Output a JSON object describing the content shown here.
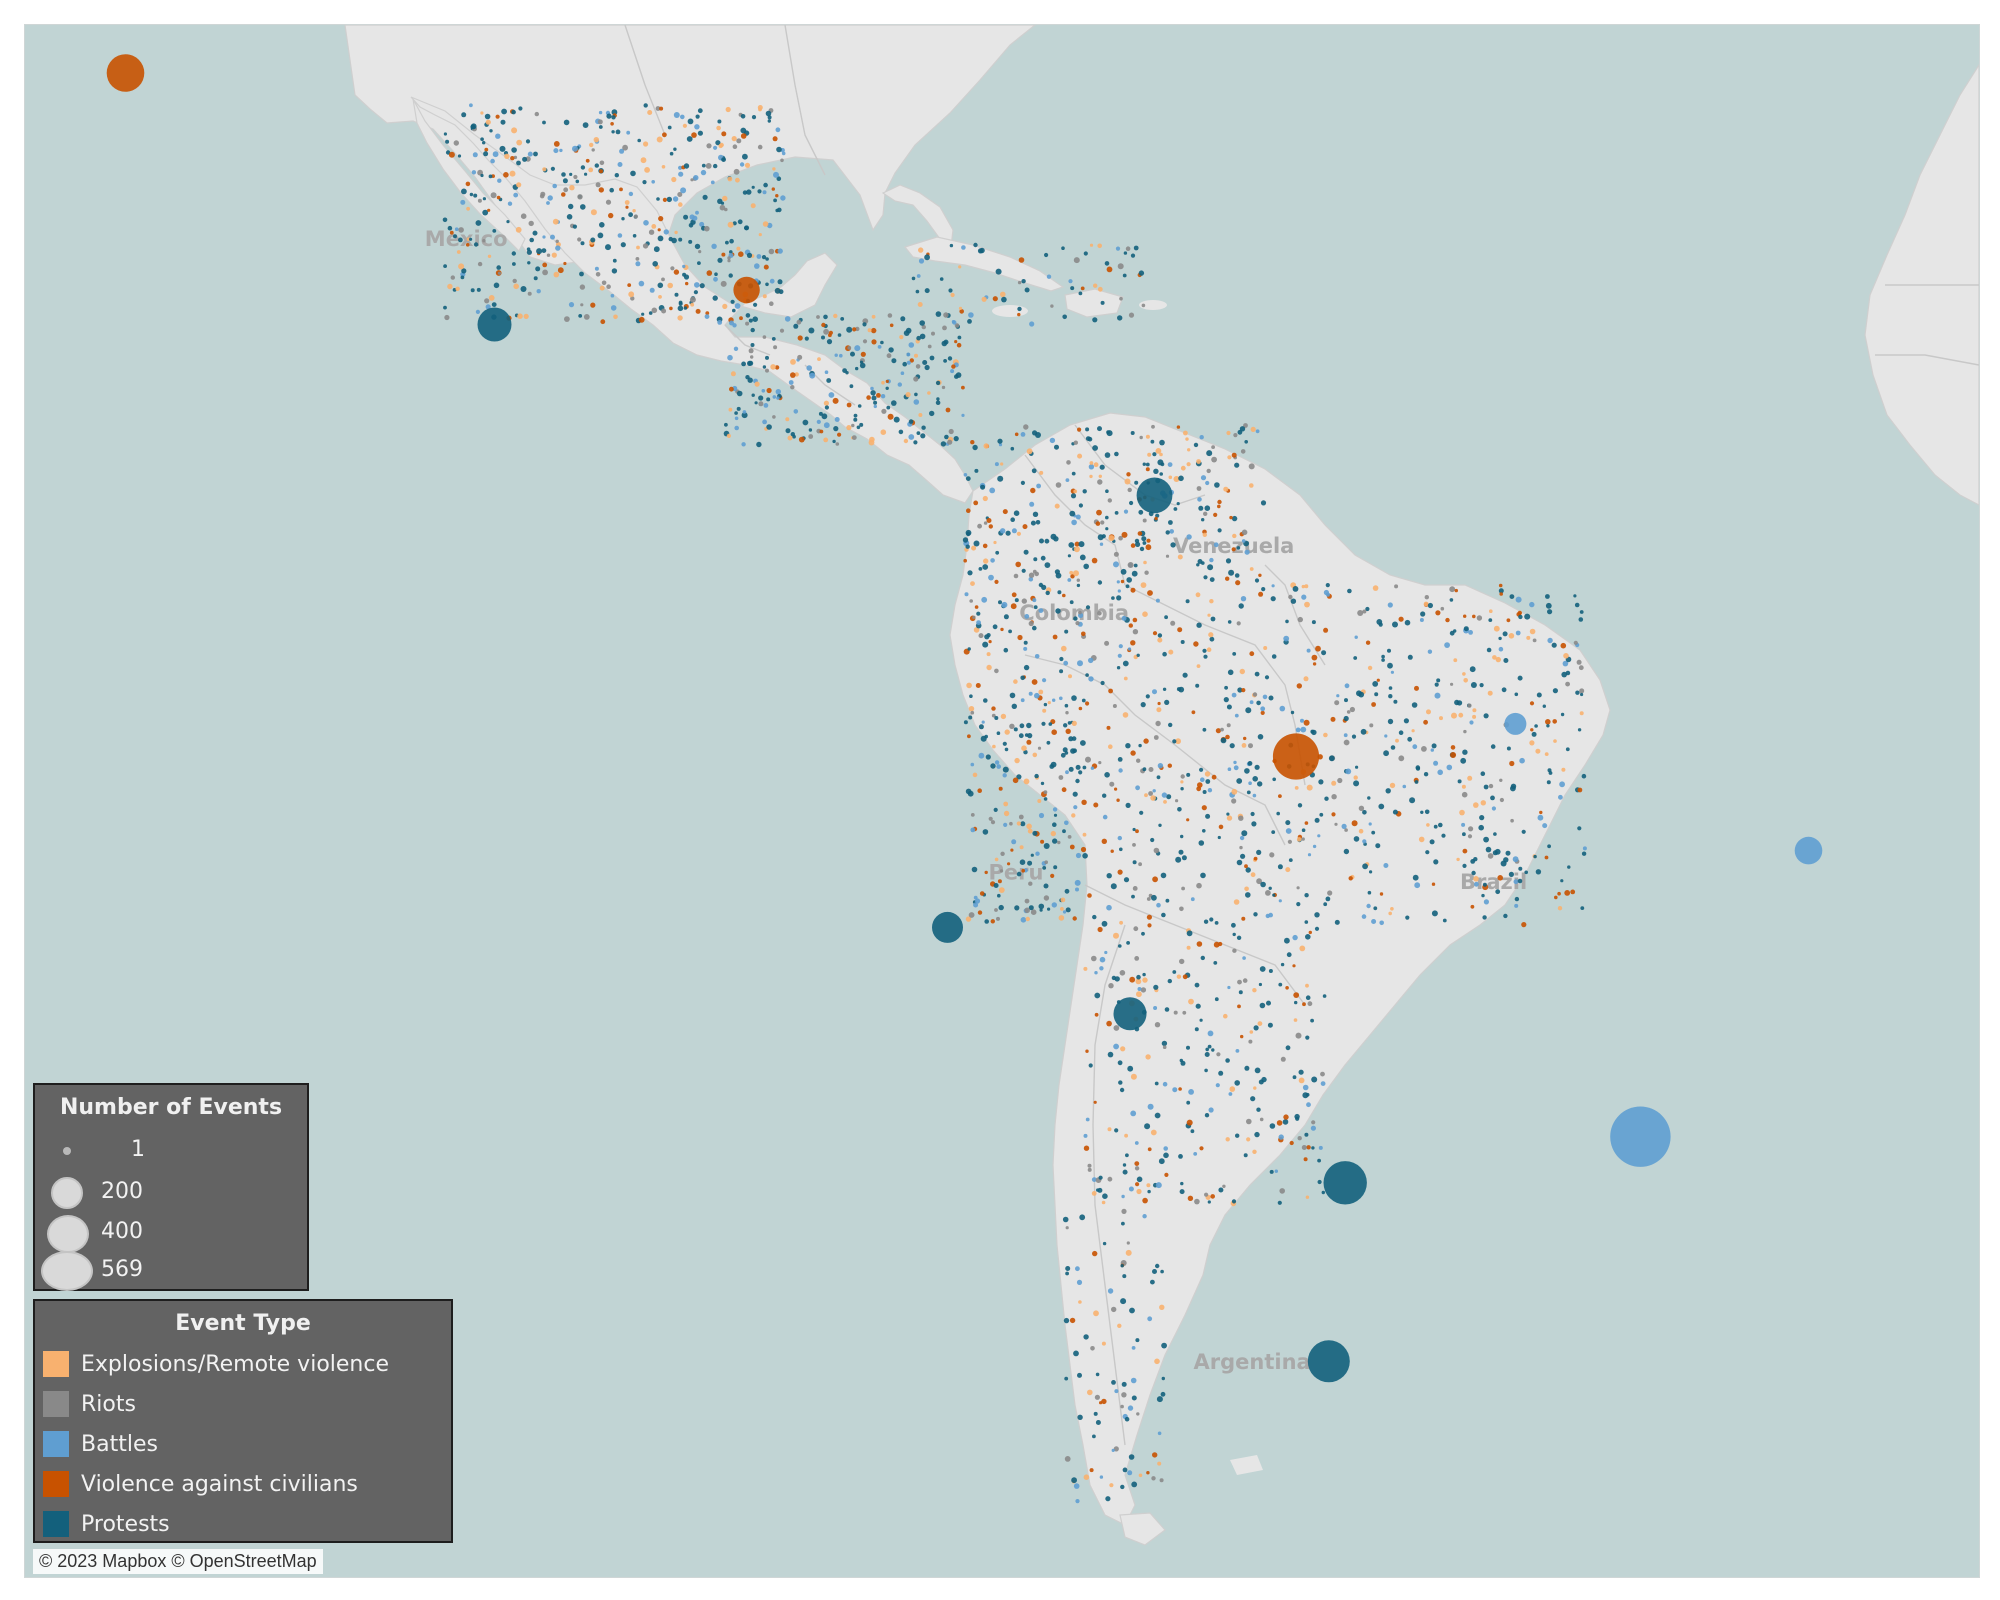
{
  "map": {
    "attribution": "© 2023 Mapbox © OpenStreetMap",
    "base_colors": {
      "ocean": "#c1d4d4",
      "land": "#e6e6e6",
      "border": "#c8c8c8"
    },
    "country_labels": [
      {
        "name": "Mexico",
        "lon": -102.5,
        "lat": 23.5
      },
      {
        "name": "Venezuela",
        "lon": -66.0,
        "lat": 7.5
      },
      {
        "name": "Colombia",
        "lon": -73.5,
        "lat": 4.0
      },
      {
        "name": "Peru",
        "lon": -75.0,
        "lat": -9.5
      },
      {
        "name": "Brazil",
        "lon": -52.0,
        "lat": -10.0
      },
      {
        "name": "Argentina",
        "lon": -65.0,
        "lat": -35.0
      }
    ]
  },
  "legend_size": {
    "title": "Number of Events",
    "entries": [
      {
        "label": "1",
        "value": 1
      },
      {
        "label": "200",
        "value": 200
      },
      {
        "label": "400",
        "value": 400
      },
      {
        "label": "569",
        "value": 569
      }
    ]
  },
  "legend_type": {
    "title": "Event Type",
    "entries": [
      {
        "label": "Explosions/Remote violence",
        "color": "#f8b16f"
      },
      {
        "label": "Riots",
        "color": "#898989"
      },
      {
        "label": "Battles",
        "color": "#5f9ed1"
      },
      {
        "label": "Violence against civilians",
        "color": "#c85200"
      },
      {
        "label": "Protests",
        "color": "#13607c"
      }
    ]
  },
  "highlight_events": [
    {
      "lon": -117.1,
      "lat": 32.5,
      "type": "Violence against civilians",
      "count": 180
    },
    {
      "lon": -60.0,
      "lat": -3.1,
      "type": "Violence against civilians",
      "count": 300
    },
    {
      "lon": -43.2,
      "lat": -22.9,
      "type": "Battles",
      "count": 569
    },
    {
      "lon": -57.6,
      "lat": -25.3,
      "type": "Protests",
      "count": 260
    },
    {
      "lon": -58.4,
      "lat": -34.6,
      "type": "Protests",
      "count": 240
    },
    {
      "lon": -66.9,
      "lat": 10.5,
      "type": "Protests",
      "count": 160
    },
    {
      "lon": -99.1,
      "lat": 19.4,
      "type": "Protests",
      "count": 140
    },
    {
      "lon": -86.8,
      "lat": 21.2,
      "type": "Violence against civilians",
      "count": 70
    },
    {
      "lon": -35.0,
      "lat": -8.0,
      "type": "Battles",
      "count": 80
    },
    {
      "lon": -68.1,
      "lat": -16.5,
      "type": "Protests",
      "count": 130
    },
    {
      "lon": -77.0,
      "lat": -12.0,
      "type": "Protests",
      "count": 110
    },
    {
      "lon": -49.3,
      "lat": -1.4,
      "type": "Battles",
      "count": 40
    }
  ]
}
